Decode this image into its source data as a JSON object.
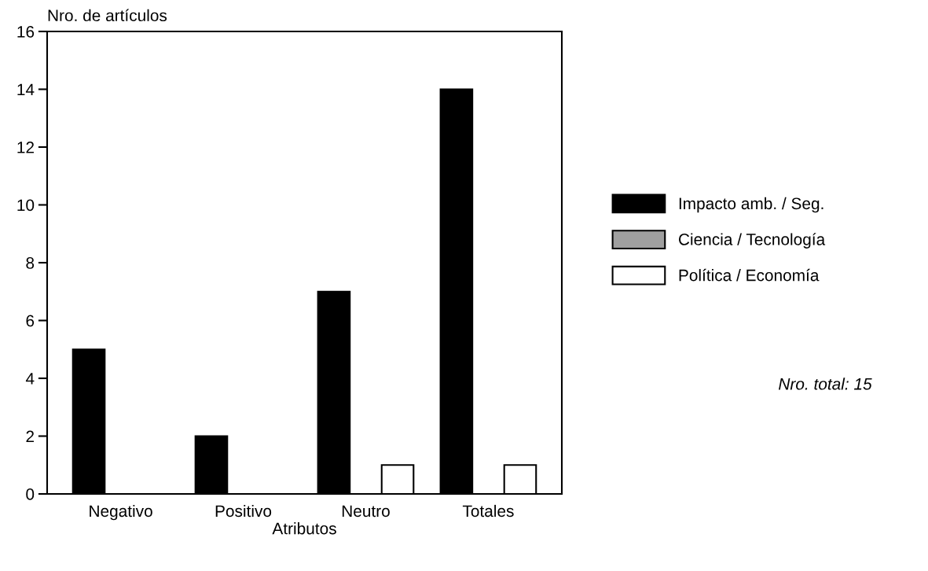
{
  "chart_data": {
    "type": "bar",
    "ylabel": "Nro. de artículos",
    "xlabel": "Atributos",
    "categories": [
      "Negativo",
      "Positivo",
      "Neutro",
      "Totales"
    ],
    "series": [
      {
        "name": "Impacto amb. / Seg.",
        "color": "#000000",
        "values": [
          5,
          2,
          7,
          14
        ]
      },
      {
        "name": "Ciencia / Tecnología",
        "color": "#a0a0a0",
        "values": [
          null,
          null,
          null,
          null
        ]
      },
      {
        "name": "Política / Economía",
        "color": "#ffffff",
        "values": [
          null,
          null,
          1,
          1
        ]
      }
    ],
    "ylim": [
      0,
      16
    ],
    "yticks": [
      0,
      2,
      4,
      6,
      8,
      10,
      12,
      14,
      16
    ],
    "grid": false,
    "legend": "right",
    "annotations": [
      "Nro. total: 15"
    ]
  }
}
